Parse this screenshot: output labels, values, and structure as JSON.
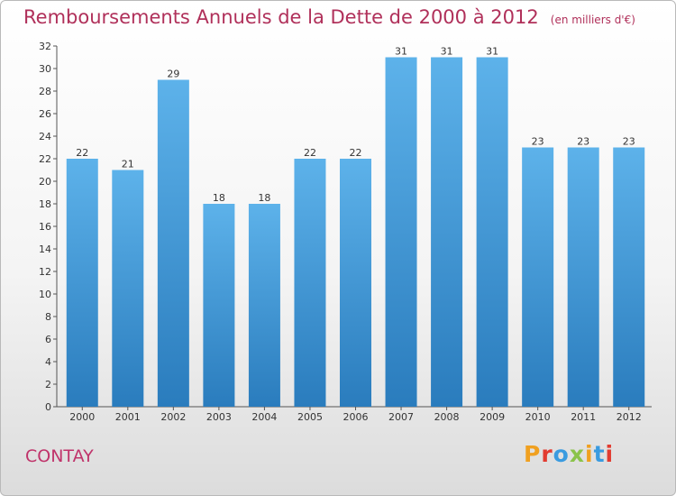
{
  "header": {
    "title": "Remboursements Annuels de la Dette de 2000 à 2012",
    "unit": "(en milliers d'€)"
  },
  "footer": {
    "commune": "CONTAY",
    "logo_text": "Proxiti"
  },
  "colors": {
    "title": "#b0305a",
    "bar_top": "#5db2ea",
    "bar_bottom": "#2a7cbd",
    "logo": [
      "#f0a020",
      "#e23b30",
      "#3a9be0",
      "#8bc34a",
      "#f0a020",
      "#3a9be0",
      "#e23b30"
    ]
  },
  "chart_data": {
    "type": "bar",
    "title": "Remboursements Annuels de la Dette de 2000 à 2012",
    "subtitle": "(en milliers d'€)",
    "xlabel": "",
    "ylabel": "",
    "categories": [
      "2000",
      "2001",
      "2002",
      "2003",
      "2004",
      "2005",
      "2006",
      "2007",
      "2008",
      "2009",
      "2010",
      "2011",
      "2012"
    ],
    "values": [
      22,
      21,
      29,
      18,
      18,
      22,
      22,
      31,
      31,
      31,
      23,
      23,
      23
    ],
    "ylim": [
      0,
      32
    ],
    "yticks": [
      0,
      2,
      4,
      6,
      8,
      10,
      12,
      14,
      16,
      18,
      20,
      22,
      24,
      26,
      28,
      30,
      32
    ],
    "grid": false,
    "legend": "none",
    "data_labels": true
  }
}
